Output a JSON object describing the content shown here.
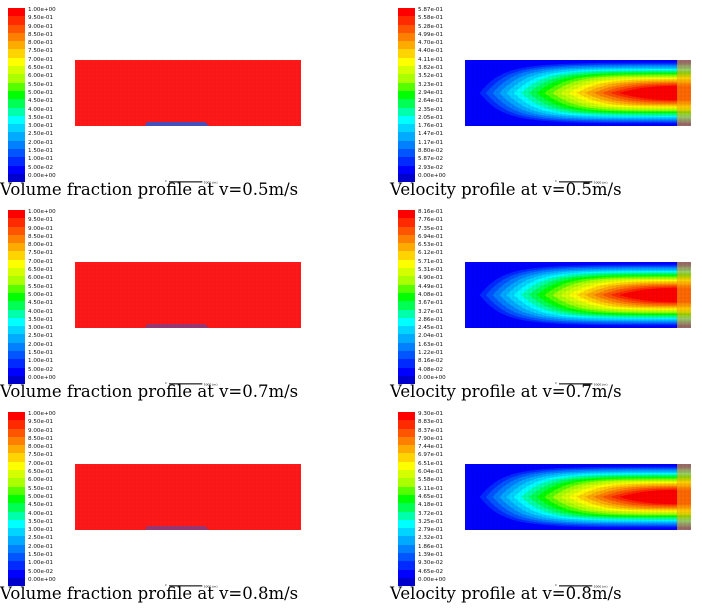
{
  "panels": [
    {
      "kind": "volume",
      "caption": "Volume fraction profile at v=0.5m/s",
      "legend": [
        "1.00e+00",
        "9.50e-01",
        "9.00e-01",
        "8.50e-01",
        "8.00e-01",
        "7.50e-01",
        "7.00e-01",
        "6.50e-01",
        "6.00e-01",
        "5.50e-01",
        "5.00e-01",
        "4.50e-01",
        "4.00e-01",
        "3.50e-01",
        "3.00e-01",
        "2.50e-01",
        "2.00e-01",
        "1.50e-01",
        "1.00e-01",
        "5.00e-02",
        "0.00e+00"
      ],
      "scale_label": "5000 (m)"
    },
    {
      "kind": "velocity",
      "caption": "Velocity profile at v=0.5m/s",
      "legend": [
        "5.87e-01",
        "5.58e-01",
        "5.28e-01",
        "4.99e-01",
        "4.70e-01",
        "4.40e-01",
        "4.11e-01",
        "3.82e-01",
        "3.52e-01",
        "3.23e-01",
        "2.94e-01",
        "2.64e-01",
        "2.35e-01",
        "2.05e-01",
        "1.76e-01",
        "1.47e-01",
        "1.17e-01",
        "8.80e-02",
        "5.87e-02",
        "2.93e-02",
        "0.00e+00"
      ],
      "scale_label": "5000 (m)"
    },
    {
      "kind": "volume",
      "caption": "Volume fraction profile at v=0.7m/s",
      "legend": [
        "1.00e+00",
        "9.50e-01",
        "9.00e-01",
        "8.50e-01",
        "8.00e-01",
        "7.50e-01",
        "7.00e-01",
        "6.50e-01",
        "6.00e-01",
        "5.50e-01",
        "5.00e-01",
        "4.50e-01",
        "4.00e-01",
        "3.50e-01",
        "3.00e-01",
        "2.50e-01",
        "2.00e-01",
        "1.50e-01",
        "1.00e-01",
        "5.00e-02",
        "0.00e+00"
      ],
      "scale_label": "5000 (m)"
    },
    {
      "kind": "velocity",
      "caption": "Velocity profile at v=0.7m/s",
      "legend": [
        "8.16e-01",
        "7.76e-01",
        "7.35e-01",
        "6.94e-01",
        "6.53e-01",
        "6.12e-01",
        "5.71e-01",
        "5.31e-01",
        "4.90e-01",
        "4.49e-01",
        "4.08e-01",
        "3.67e-01",
        "3.27e-01",
        "2.86e-01",
        "2.45e-01",
        "2.04e-01",
        "1.63e-01",
        "1.22e-01",
        "8.16e-02",
        "4.08e-02",
        "0.00e+00"
      ],
      "scale_label": "5000 (m)"
    },
    {
      "kind": "volume",
      "caption": "Volume fraction profile at v=0.8m/s",
      "legend": [
        "1.00e+00",
        "9.50e-01",
        "9.00e-01",
        "8.50e-01",
        "8.00e-01",
        "7.50e-01",
        "7.00e-01",
        "6.50e-01",
        "6.00e-01",
        "5.50e-01",
        "5.00e-01",
        "4.50e-01",
        "4.00e-01",
        "3.50e-01",
        "3.00e-01",
        "2.50e-01",
        "2.00e-01",
        "1.50e-01",
        "1.00e-01",
        "5.00e-02",
        "0.00e+00"
      ],
      "scale_label": "5000 (m)"
    },
    {
      "kind": "velocity",
      "caption": "Velocity profile at v=0.8m/s",
      "legend": [
        "9.30e-01",
        "8.83e-01",
        "8.37e-01",
        "7.90e-01",
        "7.44e-01",
        "6.97e-01",
        "6.51e-01",
        "6.04e-01",
        "5.58e-01",
        "5.11e-01",
        "4.65e-01",
        "4.18e-01",
        "3.72e-01",
        "3.25e-01",
        "2.79e-01",
        "2.32e-01",
        "1.86e-01",
        "1.39e-01",
        "9.30e-02",
        "4.65e-02",
        "0.00e+00"
      ],
      "scale_label": "5000 (m)"
    }
  ],
  "colormap": [
    "#ff0000",
    "#ff2a00",
    "#ff5500",
    "#ff7f00",
    "#ffaa00",
    "#ffd400",
    "#ffff00",
    "#d4ff00",
    "#aaff00",
    "#55ff00",
    "#00ff00",
    "#00ff55",
    "#00ffaa",
    "#00ffff",
    "#00d4ff",
    "#00aaff",
    "#007fff",
    "#0055ff",
    "#002aff",
    "#0000ff",
    "#0000cc"
  ]
}
